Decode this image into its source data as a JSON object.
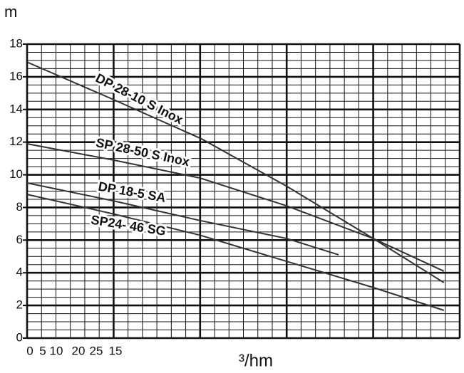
{
  "chart_data": {
    "type": "line",
    "y_label": "m",
    "x_label": "³/hm",
    "x_tick_labels": [
      "0",
      "5",
      "10",
      "20",
      "25",
      "15"
    ],
    "xlim": [
      0,
      30
    ],
    "ylim": [
      0,
      18
    ],
    "yticks": [
      0,
      2,
      4,
      6,
      8,
      10,
      12,
      14,
      16,
      18
    ],
    "x_grid": [
      0,
      1,
      2,
      3,
      4,
      5,
      6,
      7,
      8,
      9,
      10,
      11,
      12,
      13,
      14,
      15,
      16,
      17,
      18,
      19,
      20,
      21,
      22,
      23,
      24,
      25,
      26,
      27,
      28,
      29,
      30
    ],
    "x_major_grid": [
      0,
      6,
      12,
      18,
      24,
      30
    ],
    "y_grid": [
      0,
      0.5,
      1,
      1.5,
      2,
      2.5,
      3,
      3.5,
      4,
      4.5,
      5,
      5.5,
      6,
      6.5,
      7,
      7.5,
      8,
      8.5,
      9,
      9.5,
      10,
      10.5,
      11,
      11.5,
      12,
      12.5,
      13,
      13.5,
      14,
      14.5,
      15,
      15.5,
      16,
      16.5,
      17,
      17.5,
      18
    ],
    "color": "#333333",
    "series": [
      {
        "name": "DP 28-10 S Inox",
        "x": [
          0,
          6,
          12.1,
          18,
          24,
          28.9
        ],
        "values": [
          16.9,
          14.6,
          12.2,
          9.3,
          6.1,
          3.4
        ]
      },
      {
        "name": "SP 28-50 S Inox",
        "x": [
          0,
          6,
          12,
          18,
          24,
          28.9
        ],
        "values": [
          11.9,
          10.9,
          9.8,
          8.1,
          6.1,
          4.1
        ]
      },
      {
        "name": "DP 18-5 SA",
        "x": [
          0,
          6,
          12,
          18,
          21.6
        ],
        "values": [
          9.5,
          8.4,
          7.2,
          6.1,
          5.1
        ]
      },
      {
        "name": "SP24- 46 SG",
        "x": [
          0,
          6,
          12,
          18,
          24,
          28.9
        ],
        "values": [
          8.8,
          7.6,
          6.3,
          4.7,
          3.1,
          1.7
        ]
      }
    ]
  }
}
